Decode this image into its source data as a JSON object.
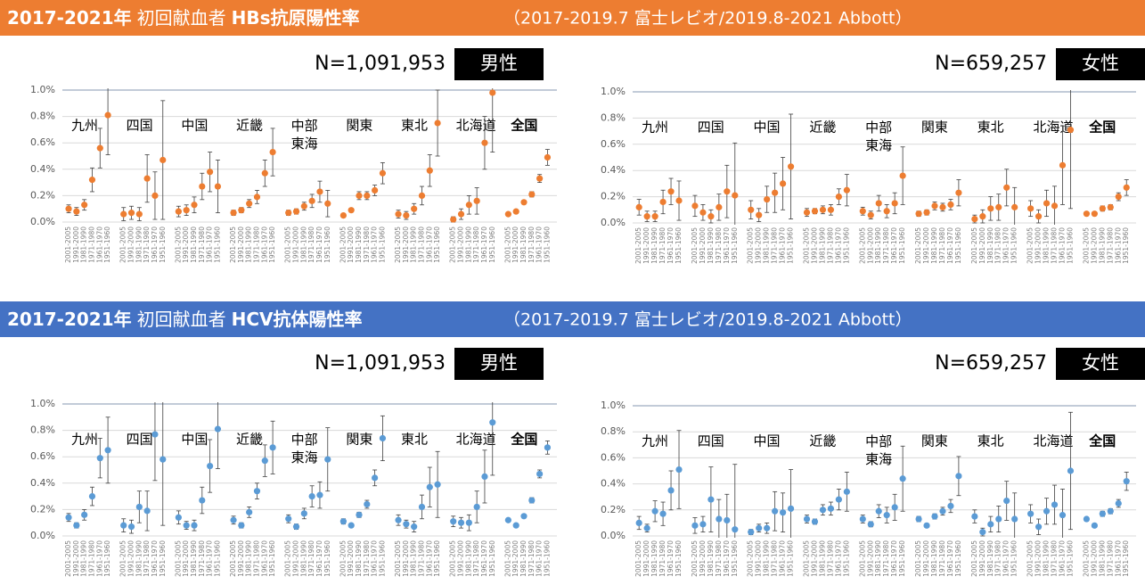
{
  "header_bars": [
    {
      "title": "2017-2021年",
      "subtitle": "初回献血者",
      "measure": "HBs抗原陽性率",
      "note": "（2017-2019.7 富士レビオ/2019.8-2021 Abbott）",
      "color": "#ed7d31"
    },
    {
      "title": "2017-2021年",
      "subtitle": "初回献血者",
      "measure": "HCV抗体陽性率",
      "note": "（2017-2019.7 富士レビオ/2019.8-2021 Abbott）",
      "color": "#4472c4"
    }
  ],
  "chart_data": [
    {
      "type": "errorbar",
      "n_label": "N=1,091,953",
      "sex": "男性",
      "color": "#ed7d31",
      "categories": [
        "2001-2005",
        "1991-2000",
        "1981-1990",
        "1971-1980",
        "1961-1970",
        "1951-1960"
      ],
      "ylim": [
        0,
        1
      ],
      "yticks": [
        {
          "value": 0,
          "label": "0.0%"
        },
        {
          "value": 0.2,
          "label": "0.2%"
        },
        {
          "value": 0.4,
          "label": "0.4%"
        },
        {
          "value": 0.6,
          "label": "0.6%"
        },
        {
          "value": 0.8,
          "label": "0.8%"
        },
        {
          "value": 1,
          "label": "1.0%"
        }
      ],
      "grid": true,
      "groups": [
        {
          "name": "九州",
          "values": [
            0.1,
            0.08,
            0.13,
            0.32,
            0.56,
            0.81
          ],
          "errors": [
            0.03,
            0.03,
            0.04,
            0.09,
            0.15,
            0.3
          ]
        },
        {
          "name": "四国",
          "values": [
            0.06,
            0.07,
            0.06,
            0.33,
            0.2,
            0.47
          ],
          "errors": [
            0.05,
            0.05,
            0.05,
            0.18,
            0.18,
            0.45
          ]
        },
        {
          "name": "中国",
          "values": [
            0.08,
            0.09,
            0.13,
            0.27,
            0.38,
            0.27
          ],
          "errors": [
            0.04,
            0.04,
            0.06,
            0.1,
            0.15,
            0.2
          ]
        },
        {
          "name": "近畿",
          "values": [
            0.07,
            0.09,
            0.14,
            0.19,
            0.37,
            0.53
          ],
          "errors": [
            0.02,
            0.02,
            0.03,
            0.05,
            0.1,
            0.18
          ]
        },
        {
          "name": "中部\n東海",
          "values": [
            0.07,
            0.08,
            0.12,
            0.16,
            0.23,
            0.14
          ],
          "errors": [
            0.02,
            0.02,
            0.03,
            0.05,
            0.08,
            0.1
          ]
        },
        {
          "name": "関東",
          "values": [
            0.05,
            0.09,
            0.2,
            0.2,
            0.24,
            0.37
          ],
          "errors": [
            0.01,
            0.01,
            0.03,
            0.03,
            0.04,
            0.08
          ]
        },
        {
          "name": "東北",
          "values": [
            0.06,
            0.05,
            0.1,
            0.2,
            0.39,
            0.75
          ],
          "errors": [
            0.03,
            0.03,
            0.04,
            0.07,
            0.12,
            0.25
          ]
        },
        {
          "name": "北海道",
          "values": [
            0.02,
            0.06,
            0.13,
            0.16,
            0.6,
            0.98
          ],
          "errors": [
            0.02,
            0.04,
            0.07,
            0.1,
            0.2,
            0.45
          ]
        },
        {
          "name": "全国",
          "label_color": "#c00000",
          "values": [
            0.06,
            0.08,
            0.15,
            0.21,
            0.33,
            0.49
          ],
          "errors": [
            0.01,
            0.01,
            0.01,
            0.02,
            0.03,
            0.06
          ]
        }
      ]
    },
    {
      "type": "errorbar",
      "n_label": "N=659,257",
      "sex": "女性",
      "color": "#ed7d31",
      "categories": [
        "2001-2005",
        "1991-2000",
        "1981-1990",
        "1971-1980",
        "1961-1970",
        "1951-1960"
      ],
      "ylim": [
        0,
        1
      ],
      "yticks": [
        {
          "value": 0,
          "label": "0.0%"
        },
        {
          "value": 0.2,
          "label": "0.2%"
        },
        {
          "value": 0.4,
          "label": "0.4%"
        },
        {
          "value": 0.6,
          "label": "0.6%"
        },
        {
          "value": 0.8,
          "label": "0.8%"
        },
        {
          "value": 1,
          "label": "1.0%"
        }
      ],
      "grid": true,
      "groups": [
        {
          "name": "九州",
          "values": [
            0.12,
            0.05,
            0.05,
            0.16,
            0.24,
            0.17
          ],
          "errors": [
            0.06,
            0.04,
            0.04,
            0.09,
            0.1,
            0.15
          ]
        },
        {
          "name": "四国",
          "values": [
            0.13,
            0.08,
            0.05,
            0.12,
            0.24,
            0.21
          ],
          "errors": [
            0.08,
            0.06,
            0.05,
            0.1,
            0.2,
            0.4
          ]
        },
        {
          "name": "中国",
          "values": [
            0.1,
            0.06,
            0.18,
            0.23,
            0.3,
            0.43
          ],
          "errors": [
            0.07,
            0.05,
            0.1,
            0.15,
            0.2,
            0.4
          ]
        },
        {
          "name": "近畿",
          "values": [
            0.08,
            0.09,
            0.1,
            0.1,
            0.2,
            0.25
          ],
          "errors": [
            0.03,
            0.02,
            0.03,
            0.04,
            0.06,
            0.12
          ]
        },
        {
          "name": "中部\n東海",
          "values": [
            0.09,
            0.06,
            0.15,
            0.09,
            0.15,
            0.36
          ],
          "errors": [
            0.03,
            0.03,
            0.06,
            0.05,
            0.08,
            0.22
          ]
        },
        {
          "name": "関東",
          "values": [
            0.07,
            0.08,
            0.13,
            0.12,
            0.14,
            0.23
          ],
          "errors": [
            0.02,
            0.02,
            0.03,
            0.03,
            0.04,
            0.1
          ]
        },
        {
          "name": "東北",
          "values": [
            0.03,
            0.05,
            0.11,
            0.12,
            0.27,
            0.12
          ],
          "errors": [
            0.03,
            0.05,
            0.09,
            0.1,
            0.14,
            0.15
          ]
        },
        {
          "name": "北海道",
          "values": [
            0.11,
            0.05,
            0.15,
            0.13,
            0.44,
            0.71
          ],
          "errors": [
            0.06,
            0.05,
            0.1,
            0.15,
            0.3,
            0.6
          ]
        },
        {
          "name": "全国",
          "label_color": "#c00000",
          "values": [
            0.07,
            0.07,
            0.11,
            0.12,
            0.2,
            0.27
          ],
          "errors": [
            0.01,
            0.01,
            0.02,
            0.02,
            0.03,
            0.06
          ]
        }
      ]
    },
    {
      "type": "errorbar",
      "n_label": "N=1,091,953",
      "sex": "男性",
      "color": "#5b9bd5",
      "categories": [
        "2001-2005",
        "1991-2000",
        "1981-1990",
        "1971-1980",
        "1961-1970",
        "1951-1960"
      ],
      "ylim": [
        0,
        1
      ],
      "yticks": [
        {
          "value": 0,
          "label": "0.0%"
        },
        {
          "value": 0.2,
          "label": "0.2%"
        },
        {
          "value": 0.4,
          "label": "0.4%"
        },
        {
          "value": 0.6,
          "label": "0.6%"
        },
        {
          "value": 0.8,
          "label": "0.8%"
        },
        {
          "value": 1,
          "label": "1.0%"
        }
      ],
      "grid": true,
      "groups": [
        {
          "name": "九州",
          "values": [
            0.14,
            0.08,
            0.16,
            0.3,
            0.59,
            0.65
          ],
          "errors": [
            0.03,
            0.02,
            0.04,
            0.07,
            0.15,
            0.25
          ]
        },
        {
          "name": "四国",
          "values": [
            0.08,
            0.07,
            0.22,
            0.19,
            0.77,
            0.58
          ],
          "errors": [
            0.05,
            0.05,
            0.12,
            0.15,
            0.35,
            0.5
          ]
        },
        {
          "name": "中国",
          "values": [
            0.14,
            0.08,
            0.08,
            0.27,
            0.53,
            0.81
          ],
          "errors": [
            0.05,
            0.03,
            0.04,
            0.1,
            0.2,
            0.3
          ]
        },
        {
          "name": "近畿",
          "values": [
            0.12,
            0.08,
            0.18,
            0.34,
            0.57,
            0.67
          ],
          "errors": [
            0.03,
            0.02,
            0.04,
            0.06,
            0.12,
            0.2
          ]
        },
        {
          "name": "中部\n東海",
          "values": [
            0.13,
            0.07,
            0.17,
            0.3,
            0.31,
            0.58
          ],
          "errors": [
            0.03,
            0.02,
            0.04,
            0.08,
            0.1,
            0.24
          ]
        },
        {
          "name": "関東",
          "values": [
            0.11,
            0.08,
            0.16,
            0.24,
            0.44,
            0.74
          ],
          "errors": [
            0.02,
            0.01,
            0.02,
            0.03,
            0.06,
            0.17
          ]
        },
        {
          "name": "東北",
          "values": [
            0.12,
            0.09,
            0.07,
            0.22,
            0.37,
            0.39
          ],
          "errors": [
            0.04,
            0.03,
            0.04,
            0.09,
            0.15,
            0.25
          ]
        },
        {
          "name": "北海道",
          "values": [
            0.11,
            0.1,
            0.1,
            0.22,
            0.45,
            0.86
          ],
          "errors": [
            0.04,
            0.04,
            0.06,
            0.12,
            0.2,
            0.4
          ]
        },
        {
          "name": "全国",
          "label_color": "#c00000",
          "values": [
            0.12,
            0.08,
            0.15,
            0.27,
            0.47,
            0.67
          ],
          "errors": [
            0.01,
            0.01,
            0.01,
            0.02,
            0.03,
            0.05
          ]
        }
      ]
    },
    {
      "type": "errorbar",
      "n_label": "N=659,257",
      "sex": "女性",
      "color": "#5b9bd5",
      "categories": [
        "2001-2005",
        "1991-2000",
        "1981-1990",
        "1971-1980",
        "1961-1970",
        "1951-1960"
      ],
      "ylim": [
        0,
        1
      ],
      "yticks": [
        {
          "value": 0,
          "label": "0.0%"
        },
        {
          "value": 0.2,
          "label": "0.2%"
        },
        {
          "value": 0.4,
          "label": "0.4%"
        },
        {
          "value": 0.6,
          "label": "0.6%"
        },
        {
          "value": 0.8,
          "label": "0.8%"
        },
        {
          "value": 1,
          "label": "1.0%"
        }
      ],
      "grid": true,
      "groups": [
        {
          "name": "九州",
          "values": [
            0.1,
            0.06,
            0.19,
            0.17,
            0.35,
            0.51
          ],
          "errors": [
            0.05,
            0.03,
            0.08,
            0.09,
            0.15,
            0.3
          ]
        },
        {
          "name": "四国",
          "values": [
            0.08,
            0.09,
            0.28,
            0.13,
            0.12,
            0.05
          ],
          "errors": [
            0.06,
            0.06,
            0.25,
            0.15,
            0.2,
            0.5
          ]
        },
        {
          "name": "中国",
          "values": [
            0.03,
            0.06,
            0.06,
            0.19,
            0.18,
            0.21
          ],
          "errors": [
            0.02,
            0.03,
            0.04,
            0.15,
            0.15,
            0.3
          ]
        },
        {
          "name": "近畿",
          "values": [
            0.13,
            0.11,
            0.2,
            0.21,
            0.28,
            0.34
          ],
          "errors": [
            0.03,
            0.02,
            0.04,
            0.05,
            0.08,
            0.15
          ]
        },
        {
          "name": "中部\n東海",
          "values": [
            0.13,
            0.09,
            0.19,
            0.16,
            0.22,
            0.44
          ],
          "errors": [
            0.03,
            0.02,
            0.05,
            0.06,
            0.1,
            0.25
          ]
        },
        {
          "name": "関東",
          "values": [
            0.13,
            0.08,
            0.15,
            0.19,
            0.23,
            0.46
          ],
          "errors": [
            0.02,
            0.01,
            0.02,
            0.03,
            0.05,
            0.15
          ]
        },
        {
          "name": "東北",
          "values": [
            0.15,
            0.03,
            0.09,
            0.13,
            0.27,
            0.13
          ],
          "errors": [
            0.05,
            0.03,
            0.06,
            0.1,
            0.15,
            0.2
          ]
        },
        {
          "name": "北海道",
          "values": [
            0.17,
            0.07,
            0.19,
            0.24,
            0.16,
            0.5
          ],
          "errors": [
            0.07,
            0.06,
            0.1,
            0.15,
            0.2,
            0.45
          ]
        },
        {
          "name": "全国",
          "label_color": "#c00000",
          "values": [
            0.13,
            0.08,
            0.17,
            0.19,
            0.25,
            0.42
          ],
          "errors": [
            0.01,
            0.01,
            0.02,
            0.02,
            0.03,
            0.07
          ]
        }
      ]
    }
  ]
}
